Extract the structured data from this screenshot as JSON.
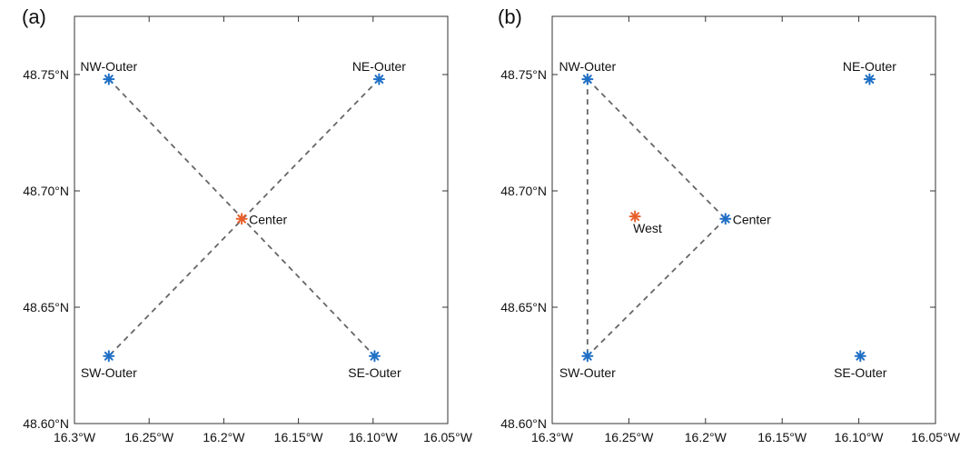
{
  "chart_data": [
    {
      "type": "scatter",
      "panel_label": "(a)",
      "xlim": [
        -16.3,
        -16.05
      ],
      "ylim": [
        48.6,
        48.775
      ],
      "x_ticks": [
        -16.3,
        -16.25,
        -16.2,
        -16.15,
        -16.1,
        -16.05
      ],
      "x_tick_labels": [
        "16.3°W",
        "16.25°W",
        "16.2°W",
        "16.15°W",
        "16.10°W",
        "16.05°W"
      ],
      "y_ticks": [
        48.6,
        48.65,
        48.7,
        48.75
      ],
      "y_tick_labels": [
        "48.60°N",
        "48.65°N",
        "48.70°N",
        "48.75°N"
      ],
      "points": [
        {
          "label": "NW-Outer",
          "lon": -16.277,
          "lat": 48.748,
          "color": "#1f6fc5",
          "label_pos": "above"
        },
        {
          "label": "NE-Outer",
          "lon": -16.096,
          "lat": 48.748,
          "color": "#1f6fc5",
          "label_pos": "above"
        },
        {
          "label": "SW-Outer",
          "lon": -16.277,
          "lat": 48.629,
          "color": "#1f6fc5",
          "label_pos": "below"
        },
        {
          "label": "SE-Outer",
          "lon": -16.099,
          "lat": 48.629,
          "color": "#1f6fc5",
          "label_pos": "below"
        },
        {
          "label": "Center",
          "lon": -16.188,
          "lat": 48.688,
          "color": "#e8602c",
          "label_pos": "right"
        }
      ],
      "lines": [
        [
          [
            -16.277,
            48.748
          ],
          [
            -16.099,
            48.629
          ]
        ],
        [
          [
            -16.096,
            48.748
          ],
          [
            -16.277,
            48.629
          ]
        ]
      ]
    },
    {
      "type": "scatter",
      "panel_label": "(b)",
      "xlim": [
        -16.3,
        -16.05
      ],
      "ylim": [
        48.6,
        48.775
      ],
      "x_ticks": [
        -16.3,
        -16.25,
        -16.2,
        -16.15,
        -16.1,
        -16.05
      ],
      "x_tick_labels": [
        "16.3°W",
        "16.25°W",
        "16.2°W",
        "16.15°W",
        "16.10°W",
        "16.05°W"
      ],
      "y_ticks": [
        48.6,
        48.65,
        48.7,
        48.75
      ],
      "y_tick_labels": [
        "48.60°N",
        "48.65°N",
        "48.70°N",
        "48.75°N"
      ],
      "points": [
        {
          "label": "NW-Outer",
          "lon": -16.277,
          "lat": 48.748,
          "color": "#1f6fc5",
          "label_pos": "above"
        },
        {
          "label": "NE-Outer",
          "lon": -16.093,
          "lat": 48.748,
          "color": "#1f6fc5",
          "label_pos": "above"
        },
        {
          "label": "SW-Outer",
          "lon": -16.277,
          "lat": 48.629,
          "color": "#1f6fc5",
          "label_pos": "below"
        },
        {
          "label": "SE-Outer",
          "lon": -16.099,
          "lat": 48.629,
          "color": "#1f6fc5",
          "label_pos": "below"
        },
        {
          "label": "Center",
          "lon": -16.187,
          "lat": 48.688,
          "color": "#1f6fc5",
          "label_pos": "right"
        },
        {
          "label": "West",
          "lon": -16.246,
          "lat": 48.689,
          "color": "#e8602c",
          "label_pos": "below"
        }
      ],
      "lines": [
        [
          [
            -16.277,
            48.748
          ],
          [
            -16.277,
            48.629
          ]
        ],
        [
          [
            -16.277,
            48.748
          ],
          [
            -16.187,
            48.688
          ]
        ],
        [
          [
            -16.187,
            48.688
          ],
          [
            -16.277,
            48.629
          ]
        ]
      ]
    }
  ]
}
